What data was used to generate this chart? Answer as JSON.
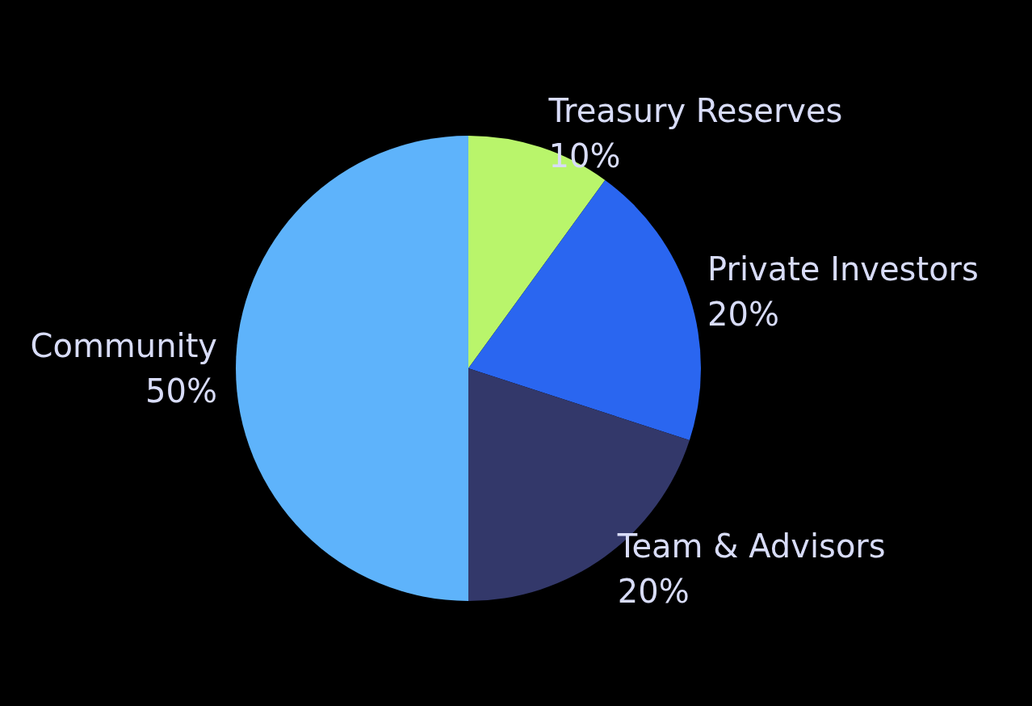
{
  "chart_data": {
    "type": "pie",
    "categories": [
      "Treasury Reserves",
      "Private Investors",
      "Team & Advisors",
      "Community"
    ],
    "values": [
      10,
      20,
      20,
      50
    ],
    "value_labels": [
      "10%",
      "20%",
      "20%",
      "50%"
    ],
    "colors": [
      "#b9f56b",
      "#2a66f0",
      "#33386a",
      "#5eb3fb"
    ],
    "legend": false
  }
}
